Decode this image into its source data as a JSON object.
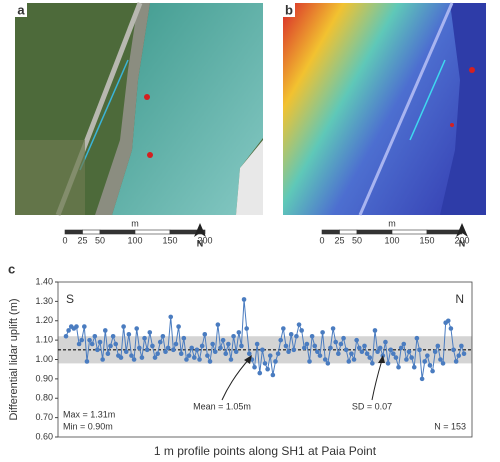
{
  "panels": [
    {
      "label": "a",
      "scale_unit": "m",
      "scale_ticks": [
        0,
        25,
        50,
        100,
        150,
        200
      ],
      "north": "N"
    },
    {
      "label": "b",
      "scale_unit": "m",
      "scale_ticks": [
        0,
        25,
        50,
        100,
        150,
        200
      ],
      "north": "N"
    }
  ],
  "chart_data": {
    "type": "line",
    "panel_label": "c",
    "y_label": "Differential lidar uplift (m)",
    "x_label": "1 m profile points along SH1 at Paia Point",
    "left_end": "S",
    "right_end": "N",
    "annotations": {
      "mean": "Mean = 1.05m",
      "sd": "SD = 0.07",
      "max": "Max = 1.31m",
      "min": "Min = 0.90m",
      "n": "N = 153"
    },
    "mean": 1.05,
    "sd": 0.07,
    "color": "#4a7cc0",
    "ylim": [
      0.6,
      1.4
    ],
    "yticks": [
      {
        "value": 0.6,
        "label": "0.60"
      },
      {
        "value": 0.7,
        "label": "0.70"
      },
      {
        "value": 0.8,
        "label": "0.80"
      },
      {
        "value": 0.9,
        "label": "0.90"
      },
      {
        "value": 1.0,
        "label": "1.00"
      },
      {
        "value": 1.1,
        "label": "1.10"
      },
      {
        "value": 1.2,
        "label": "1.20"
      },
      {
        "value": 1.3,
        "label": "1.30"
      },
      {
        "value": 1.4,
        "label": "1.40"
      }
    ],
    "values": [
      1.12,
      1.15,
      1.17,
      1.16,
      1.17,
      1.08,
      1.1,
      1.17,
      0.99,
      1.1,
      1.08,
      1.12,
      1.05,
      1.09,
      1.0,
      1.15,
      1.03,
      1.07,
      1.12,
      1.08,
      1.02,
      1.01,
      1.17,
      1.04,
      1.13,
      1.02,
      1.0,
      1.16,
      1.06,
      1.01,
      1.11,
      1.05,
      1.14,
      1.07,
      1.01,
      1.03,
      1.09,
      1.12,
      1.04,
      1.06,
      1.22,
      1.05,
      1.08,
      1.17,
      1.03,
      1.11,
      1.0,
      1.02,
      1.06,
      1.01,
      1.05,
      1.0,
      1.07,
      1.13,
      1.02,
      0.99,
      1.08,
      1.04,
      1.18,
      1.06,
      1.1,
      1.03,
      1.08,
      1.0,
      1.12,
      1.04,
      1.14,
      1.07,
      1.31,
      1.16,
      1.03,
      1.0,
      0.96,
      1.08,
      0.93,
      1.05,
      0.98,
      0.95,
      1.02,
      0.92,
      0.99,
      1.03,
      1.1,
      1.16,
      1.07,
      1.04,
      1.13,
      1.05,
      1.12,
      1.18,
      1.15,
      1.06,
      1.08,
      0.99,
      1.12,
      1.07,
      1.04,
      1.02,
      1.14,
      1.0,
      0.98,
      1.06,
      1.16,
      1.09,
      1.03,
      1.08,
      1.11,
      1.05,
      0.99,
      1.03,
      1.0,
      1.1,
      1.06,
      1.04,
      1.07,
      1.03,
      1.01,
      0.98,
      1.15,
      1.04,
      1.06,
      1.02,
      1.09,
      0.98,
      1.05,
      1.03,
      1.01,
      0.96,
      1.06,
      1.08,
      1.0,
      1.04,
      1.01,
      0.96,
      1.11,
      1.05,
      0.9,
      0.99,
      1.02,
      0.97,
      0.94,
      1.04,
      1.07,
      1.0,
      0.98,
      1.19,
      1.2,
      1.16,
      1.05,
      0.99,
      1.02,
      1.07,
      1.03
    ]
  }
}
